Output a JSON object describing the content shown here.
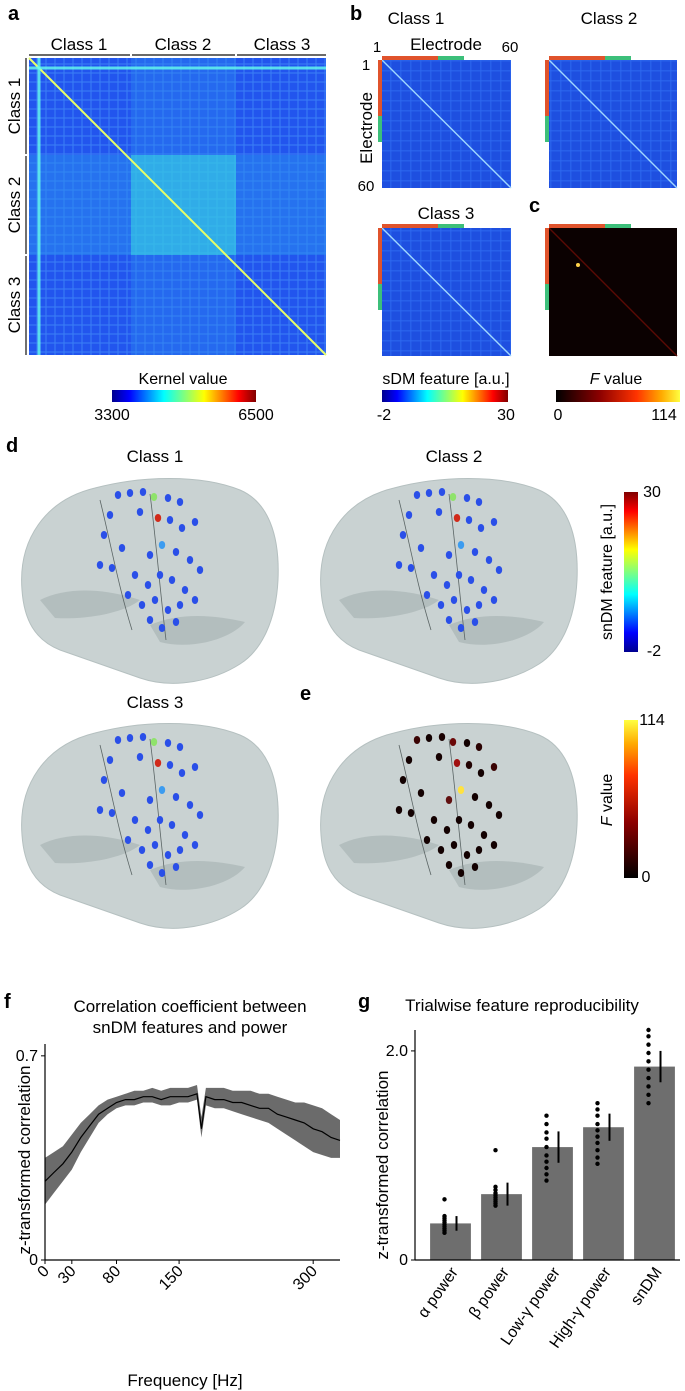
{
  "panel_labels": {
    "a": "a",
    "b": "b",
    "c": "c",
    "d": "d",
    "e": "e",
    "f": "f",
    "g": "g"
  },
  "panel_a": {
    "col_classes": [
      "Class 1",
      "Class 2",
      "Class 3"
    ],
    "row_classes": [
      "Class 1",
      "Class 2",
      "Class 3"
    ],
    "colorbar_title": "Kernel value",
    "colorbar_min": "3300",
    "colorbar_max": "6500"
  },
  "panel_b": {
    "titles": [
      "Class 1",
      "Class 2",
      "Class 3"
    ],
    "axis_label": "Electrode",
    "tick_start": "1",
    "tick_end_top": "60",
    "tick_end_left": "60",
    "colorbar_title": "sDM feature [a.u.]",
    "colorbar_min": "-2",
    "colorbar_max": "30"
  },
  "panel_c": {
    "colorbar_title_italic": "F",
    "colorbar_title_rest": " value",
    "colorbar_min": "0",
    "colorbar_max": "114"
  },
  "panel_d": {
    "titles": [
      "Class 1",
      "Class 2",
      "Class 3"
    ],
    "colorbar_title": "snDM feature [a.u.]",
    "colorbar_max": "30",
    "colorbar_min": "-2"
  },
  "panel_e": {
    "colorbar_title_italic": "F",
    "colorbar_title_rest": " value",
    "colorbar_max": "114",
    "colorbar_min": "0"
  },
  "colors": {
    "jet_low": "#1a2fd6",
    "jet_mid": "#33e6ff",
    "jet_high": "#d11b1b",
    "hot_low": "#000000",
    "hot_high": "#ffff33",
    "brain": "#c9d2d2",
    "bar": "#6e6e6e",
    "band": "#6b6b6b",
    "class1_color": "#e0532c",
    "class2_color": "#3cbf7a"
  },
  "chart_data": [
    {
      "type": "area",
      "title": "Correlation coefficient between snDM features and power",
      "title_line1": "Correlation coefficient between",
      "title_line2": "snDM features and power",
      "xlabel": "Frequency [Hz]",
      "ylabel": "z-transformed correlation",
      "xlim": [
        0,
        330
      ],
      "ylim": [
        0,
        0.72
      ],
      "xticks": [
        "0",
        "30",
        "80",
        "150",
        "300"
      ],
      "xtick_values": [
        0,
        30,
        80,
        150,
        300
      ],
      "yticks": [
        "0",
        "0.7"
      ],
      "ytick_values": [
        0,
        0.7
      ],
      "x": [
        0,
        10,
        20,
        30,
        40,
        50,
        60,
        70,
        80,
        90,
        100,
        110,
        120,
        130,
        140,
        150,
        160,
        170,
        175,
        180,
        190,
        200,
        210,
        220,
        230,
        240,
        250,
        260,
        270,
        280,
        290,
        300,
        310,
        320,
        330
      ],
      "mean": [
        0.27,
        0.3,
        0.33,
        0.37,
        0.42,
        0.46,
        0.5,
        0.52,
        0.54,
        0.55,
        0.55,
        0.56,
        0.56,
        0.55,
        0.56,
        0.56,
        0.56,
        0.57,
        0.45,
        0.56,
        0.55,
        0.55,
        0.54,
        0.54,
        0.53,
        0.52,
        0.52,
        0.5,
        0.49,
        0.48,
        0.47,
        0.45,
        0.44,
        0.42,
        0.41
      ],
      "lower": [
        0.19,
        0.23,
        0.27,
        0.31,
        0.37,
        0.42,
        0.47,
        0.5,
        0.52,
        0.53,
        0.53,
        0.54,
        0.54,
        0.53,
        0.53,
        0.54,
        0.54,
        0.55,
        0.42,
        0.53,
        0.52,
        0.52,
        0.51,
        0.5,
        0.49,
        0.48,
        0.47,
        0.45,
        0.43,
        0.41,
        0.39,
        0.37,
        0.36,
        0.35,
        0.35
      ],
      "upper": [
        0.35,
        0.37,
        0.39,
        0.43,
        0.47,
        0.5,
        0.53,
        0.55,
        0.56,
        0.57,
        0.58,
        0.58,
        0.59,
        0.58,
        0.59,
        0.59,
        0.59,
        0.6,
        0.49,
        0.59,
        0.59,
        0.59,
        0.58,
        0.58,
        0.58,
        0.57,
        0.57,
        0.56,
        0.55,
        0.54,
        0.54,
        0.53,
        0.52,
        0.5,
        0.48
      ]
    },
    {
      "type": "bar",
      "title": "Trialwise feature reproducibility",
      "xlabel": "",
      "ylabel": "z-transformed correlation",
      "ylim": [
        0,
        2.2
      ],
      "yticks": [
        "0",
        "2.0"
      ],
      "ytick_values": [
        0,
        2.0
      ],
      "categories": [
        "α power",
        "β power",
        "Low-γ power",
        "High-γ power",
        "snDM"
      ],
      "values": [
        0.35,
        0.63,
        1.08,
        1.27,
        1.85
      ],
      "errors": [
        0.07,
        0.11,
        0.15,
        0.13,
        0.15
      ],
      "points": [
        [
          0.58,
          0.42,
          0.4,
          0.38,
          0.36,
          0.34,
          0.32,
          0.3,
          0.28,
          0.26
        ],
        [
          1.05,
          0.7,
          0.67,
          0.64,
          0.62,
          0.6,
          0.58,
          0.56,
          0.54,
          0.52
        ],
        [
          1.38,
          1.3,
          1.22,
          1.16,
          1.08,
          1.0,
          0.94,
          0.88,
          0.82,
          0.76
        ],
        [
          1.5,
          1.44,
          1.38,
          1.3,
          1.24,
          1.18,
          1.12,
          1.05,
          0.98,
          0.92
        ],
        [
          2.2,
          2.14,
          2.06,
          1.98,
          1.9,
          1.82,
          1.74,
          1.66,
          1.58,
          1.5
        ]
      ]
    }
  ]
}
